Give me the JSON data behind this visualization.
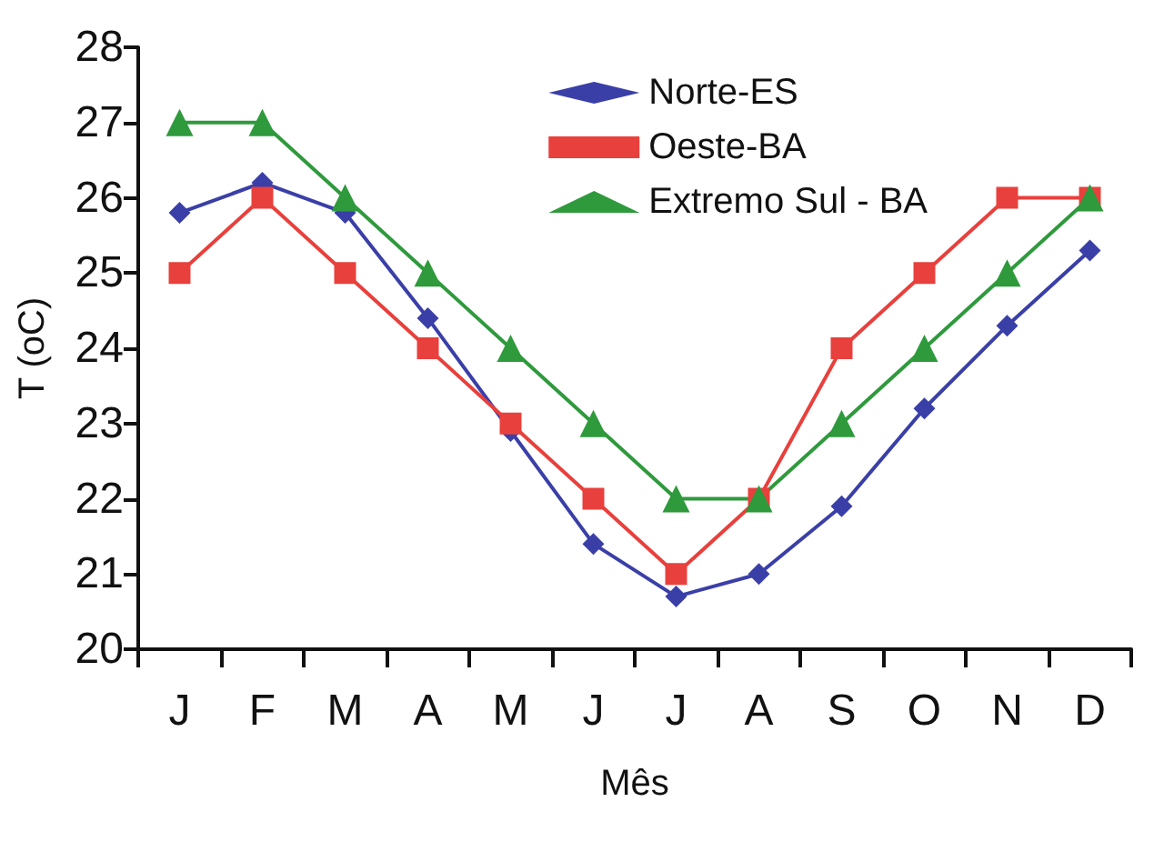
{
  "chart_data": {
    "type": "line",
    "xlabel": "Mês",
    "ylabel": "T (oC)",
    "categories": [
      "J",
      "F",
      "M",
      "A",
      "M",
      "J",
      "J",
      "A",
      "S",
      "O",
      "N",
      "D"
    ],
    "series": [
      {
        "name": "Norte-ES",
        "color": "#3a3fa8",
        "marker": "diamond",
        "values": [
          25.8,
          26.2,
          25.8,
          24.4,
          22.9,
          21.4,
          20.7,
          21.0,
          21.9,
          23.2,
          24.3,
          25.3
        ]
      },
      {
        "name": "Oeste-BA",
        "color": "#e8403c",
        "marker": "square",
        "values": [
          25,
          26,
          25,
          24,
          23,
          22,
          21,
          22,
          24,
          25,
          26,
          26
        ]
      },
      {
        "name": "Extremo Sul - BA",
        "color": "#2e9a3c",
        "marker": "triangle",
        "values": [
          27,
          27,
          26,
          25,
          24,
          23,
          22,
          22,
          23,
          24,
          25,
          26
        ]
      }
    ],
    "ylim": [
      20,
      28
    ],
    "yticks": [
      20,
      21,
      22,
      23,
      24,
      25,
      26,
      27,
      28
    ],
    "grid": false,
    "legend": "top right",
    "line_style": "solid"
  }
}
